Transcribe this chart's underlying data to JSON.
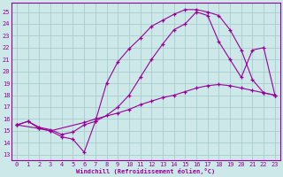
{
  "xlabel": "Windchill (Refroidissement éolien,°C)",
  "background_color": "#cce8e8",
  "grid_color": "#aacccc",
  "line_color": "#990099",
  "xlim": [
    -0.5,
    23.5
  ],
  "ylim": [
    12.5,
    25.8
  ],
  "xticks": [
    0,
    1,
    2,
    3,
    4,
    5,
    6,
    7,
    8,
    9,
    10,
    11,
    12,
    13,
    14,
    15,
    16,
    17,
    18,
    19,
    20,
    21,
    22,
    23
  ],
  "yticks": [
    13,
    14,
    15,
    16,
    17,
    18,
    19,
    20,
    21,
    22,
    23,
    24,
    25
  ],
  "line1_x": [
    0,
    1,
    2,
    3,
    4,
    5,
    6,
    7,
    8,
    9,
    10,
    11,
    12,
    13,
    14,
    15,
    16,
    17,
    18,
    19,
    20,
    21,
    22,
    23
  ],
  "line1_y": [
    15.5,
    15.8,
    15.2,
    15.0,
    14.5,
    14.3,
    13.2,
    15.8,
    19.0,
    20.8,
    21.9,
    22.8,
    23.8,
    24.3,
    24.8,
    25.2,
    25.2,
    25.0,
    24.7,
    23.5,
    21.8,
    19.3,
    18.2,
    18.0
  ],
  "line2_x": [
    0,
    2,
    3,
    6,
    7,
    9,
    10,
    11,
    12,
    13,
    14,
    15,
    16,
    17,
    18,
    19,
    20,
    21,
    22,
    23
  ],
  "line2_y": [
    15.5,
    15.2,
    15.0,
    15.7,
    16.0,
    16.5,
    16.8,
    17.2,
    17.5,
    17.8,
    18.0,
    18.3,
    18.6,
    18.8,
    18.9,
    18.8,
    18.6,
    18.4,
    18.2,
    18.0
  ],
  "line3_x": [
    0,
    1,
    2,
    3,
    4,
    5,
    6,
    7,
    8,
    9,
    10,
    11,
    12,
    13,
    14,
    15,
    16,
    17,
    18,
    19,
    20,
    21,
    22,
    23
  ],
  "line3_y": [
    15.5,
    15.8,
    15.3,
    15.1,
    14.7,
    14.9,
    15.5,
    15.8,
    16.3,
    17.0,
    18.0,
    19.5,
    21.0,
    22.3,
    23.5,
    24.0,
    25.0,
    24.7,
    22.5,
    21.0,
    19.5,
    21.8,
    22.0,
    18.0
  ]
}
